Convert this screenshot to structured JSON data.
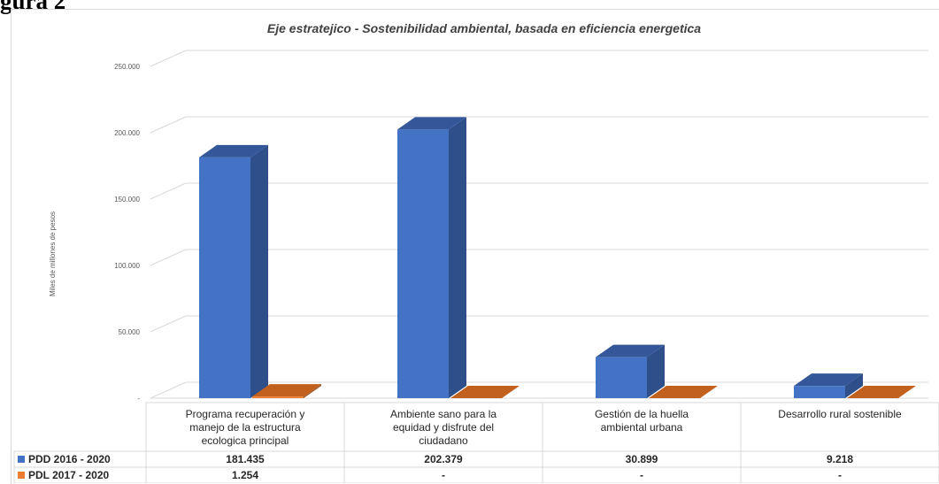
{
  "figure_label": "gura 2",
  "chart_data": {
    "type": "bar",
    "title": "Eje estratejico - Sostenibilidad ambiental, basada en eficiencia energetica",
    "ylabel": "Miles de millones de pesos",
    "xlabel": "",
    "ylim": [
      0,
      250000
    ],
    "yticks": [
      0,
      50000,
      100000,
      150000,
      200000,
      250000
    ],
    "ytick_labels": [
      "-",
      "50.000",
      "100.000",
      "150.000",
      "200.000",
      "250.000"
    ],
    "categories": [
      [
        "Programa recuperación y",
        "manejo de la estructura",
        "ecologica principal"
      ],
      [
        "Ambiente sano para la",
        "equidad y disfrute del",
        "ciudadano"
      ],
      [
        "Gestión de la huella",
        "ambiental urbana"
      ],
      [
        "Desarrollo rural sostenible"
      ]
    ],
    "series": [
      {
        "name": "PDD 2016 - 2020",
        "color": "#4472C4",
        "side_color": "#2F4F8A",
        "top_color": "#34579A",
        "values": [
          181435,
          202379,
          30899,
          9218
        ],
        "table_labels": [
          "181.435",
          "202.379",
          "30.899",
          "9.218"
        ]
      },
      {
        "name": "PDL 2017 - 2020",
        "color": "#ED7D31",
        "side_color": "#A6561F",
        "top_color": "#C2601E",
        "values": [
          1254,
          0,
          0,
          0
        ],
        "table_labels": [
          "1.254",
          "-",
          "-",
          "-"
        ]
      }
    ],
    "grid": true,
    "legend": "data-table"
  }
}
